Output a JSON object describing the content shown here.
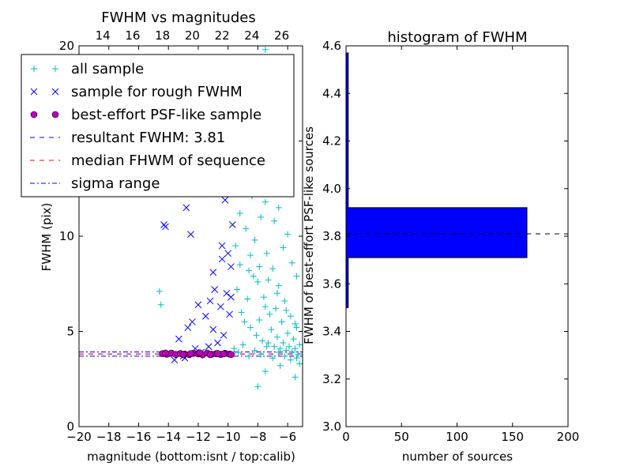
{
  "chart_data": [
    {
      "type": "scatter",
      "title": "FWHM vs magnitudes",
      "xlabel": "magnitude (bottom:isnt / top:calib)",
      "ylabel": "FWHM (pix)",
      "xlim": [
        -20,
        -5
      ],
      "ylim": [
        0,
        20
      ],
      "x_ticks": [
        -20,
        -18,
        -16,
        -14,
        -12,
        -10,
        -8,
        -6
      ],
      "x_tick_labels": [
        "−20",
        "−18",
        "−16",
        "−14",
        "−12",
        "−10",
        "−8",
        "−6"
      ],
      "y_ticks": [
        0,
        5,
        10,
        15,
        20
      ],
      "y_tick_labels": [
        "0",
        "5",
        "10",
        "15",
        "20"
      ],
      "top_axis": {
        "offset": 32.4,
        "ticks": [
          14,
          16,
          18,
          20,
          22,
          24,
          26
        ],
        "tick_labels": [
          "14",
          "16",
          "18",
          "20",
          "22",
          "24",
          "26"
        ]
      },
      "grid": false,
      "legend_position": "top-left",
      "legend": [
        {
          "label": "all sample",
          "marker": "plus",
          "color": "#00bfbf"
        },
        {
          "label": "sample for rough FWHM",
          "marker": "x",
          "color": "#0000ff"
        },
        {
          "label": "best-effort PSF-like sample",
          "marker": "circle",
          "color": "#bf00bf"
        },
        {
          "label": "resultant FWHM: 3.81",
          "marker": "dashed-line",
          "color": "#0000ff"
        },
        {
          "label": "median FHWM of sequence",
          "marker": "dashed-line",
          "color": "#ff0000"
        },
        {
          "label": "sigma range",
          "marker": "dashdot-line",
          "color": "#0000ff"
        }
      ],
      "series": [
        {
          "marker": "plus",
          "color": "#00bfbf",
          "points": [
            [
              -14.6,
              7.1
            ],
            [
              -14.5,
              6.4
            ],
            [
              -9.5,
              9.5
            ],
            [
              -9.2,
              11.2
            ],
            [
              -9.0,
              13.5
            ],
            [
              -8.8,
              10.4
            ],
            [
              -8.6,
              8.2
            ],
            [
              -8.4,
              12.1
            ],
            [
              -8.2,
              9.8
            ],
            [
              -8.0,
              7.6
            ],
            [
              -7.8,
              11.0
            ],
            [
              -7.6,
              6.8
            ],
            [
              -7.4,
              9.1
            ],
            [
              -7.2,
              5.9
            ],
            [
              -7.0,
              8.3
            ],
            [
              -6.8,
              6.2
            ],
            [
              -6.6,
              7.4
            ],
            [
              -6.4,
              5.5
            ],
            [
              -6.2,
              6.6
            ],
            [
              -6.0,
              4.9
            ],
            [
              -5.8,
              5.8
            ],
            [
              -5.6,
              4.6
            ],
            [
              -5.4,
              5.2
            ],
            [
              -5.2,
              4.3
            ],
            [
              -9.4,
              7.2
            ],
            [
              -9.1,
              6.0
            ],
            [
              -8.9,
              5.5
            ],
            [
              -8.7,
              6.7
            ],
            [
              -8.5,
              5.2
            ],
            [
              -8.3,
              7.9
            ],
            [
              -8.1,
              4.8
            ],
            [
              -7.9,
              5.6
            ],
            [
              -7.7,
              4.5
            ],
            [
              -7.5,
              6.3
            ],
            [
              -7.3,
              4.4
            ],
            [
              -7.1,
              5.1
            ],
            [
              -6.9,
              4.2
            ],
            [
              -6.7,
              4.7
            ],
            [
              -6.5,
              4.1
            ],
            [
              -6.3,
              4.4
            ],
            [
              -6.1,
              4.0
            ],
            [
              -5.9,
              4.2
            ],
            [
              -5.7,
              3.9
            ],
            [
              -5.5,
              4.1
            ],
            [
              -5.3,
              3.8
            ],
            [
              -8.0,
              2.1
            ],
            [
              -7.5,
              2.9
            ],
            [
              -6.5,
              3.2
            ],
            [
              -5.5,
              2.6
            ],
            [
              -5.2,
              3.3
            ],
            [
              -9.3,
              14.8
            ],
            [
              -9.0,
              16.2
            ],
            [
              -8.7,
              15.1
            ],
            [
              -8.4,
              13.7
            ],
            [
              -8.1,
              12.6
            ],
            [
              -7.8,
              14.2
            ],
            [
              -7.5,
              11.8
            ],
            [
              -7.2,
              12.9
            ],
            [
              -6.9,
              10.8
            ],
            [
              -6.6,
              11.5
            ],
            [
              -6.3,
              9.4
            ],
            [
              -6.0,
              10.1
            ],
            [
              -5.7,
              8.6
            ],
            [
              -5.4,
              7.9
            ],
            [
              -9.6,
              4.1
            ],
            [
              -9.3,
              3.9
            ],
            [
              -9.0,
              4.3
            ],
            [
              -8.6,
              3.7
            ],
            [
              -8.2,
              4.0
            ],
            [
              -7.8,
              3.8
            ],
            [
              -7.4,
              4.2
            ],
            [
              -7.0,
              3.6
            ],
            [
              -6.6,
              3.9
            ],
            [
              -6.2,
              3.7
            ],
            [
              -5.8,
              3.5
            ],
            [
              -5.4,
              3.6
            ],
            [
              -9.7,
              18.6
            ],
            [
              -9.0,
              19.2
            ],
            [
              -7.5,
              19.8
            ],
            [
              -9.2,
              8.5
            ],
            [
              -8.5,
              9.0
            ],
            [
              -7.9,
              8.4
            ],
            [
              -7.3,
              7.7
            ],
            [
              -6.7,
              7.0
            ],
            [
              -6.1,
              6.1
            ],
            [
              -5.5,
              5.4
            ]
          ]
        },
        {
          "marker": "x",
          "color": "#0000ff",
          "points": [
            [
              -14.3,
              10.6
            ],
            [
              -14.2,
              10.5
            ],
            [
              -12.8,
              11.5
            ],
            [
              -12.5,
              10.1
            ],
            [
              -11.8,
              12.3
            ],
            [
              -11.6,
              12.8
            ],
            [
              -10.8,
              12.4
            ],
            [
              -10.6,
              13.2
            ],
            [
              -10.4,
              9.5
            ],
            [
              -10.2,
              11.9
            ],
            [
              -10.0,
              9.1
            ],
            [
              -9.8,
              8.4
            ],
            [
              -9.7,
              10.6
            ],
            [
              -10.9,
              7.2
            ],
            [
              -11.2,
              6.6
            ],
            [
              -11.5,
              5.8
            ],
            [
              -12.0,
              6.4
            ],
            [
              -12.4,
              5.5
            ],
            [
              -12.7,
              5.2
            ],
            [
              -13.3,
              4.6
            ],
            [
              -13.0,
              3.7
            ],
            [
              -11.8,
              3.9
            ],
            [
              -11.0,
              5.1
            ],
            [
              -10.5,
              6.3
            ],
            [
              -10.1,
              7.0
            ],
            [
              -9.9,
              5.9
            ],
            [
              -9.8,
              6.8
            ],
            [
              -10.3,
              4.8
            ],
            [
              -10.7,
              4.4
            ],
            [
              -11.3,
              4.2
            ],
            [
              -12.2,
              4.1
            ],
            [
              -13.6,
              3.5
            ],
            [
              -12.9,
              3.6
            ],
            [
              -10.0,
              15.2
            ],
            [
              -9.9,
              14.8
            ],
            [
              -10.6,
              16.9
            ],
            [
              -10.2,
              15.8
            ],
            [
              -9.7,
              13.9
            ],
            [
              -11.0,
              8.1
            ],
            [
              -10.4,
              8.8
            ]
          ]
        },
        {
          "marker": "circle",
          "color": "#bf00bf",
          "points": [
            [
              -14.4,
              3.83
            ],
            [
              -14.1,
              3.8
            ],
            [
              -13.8,
              3.86
            ],
            [
              -13.5,
              3.79
            ],
            [
              -13.2,
              3.84
            ],
            [
              -12.9,
              3.81
            ],
            [
              -12.6,
              3.78
            ],
            [
              -12.3,
              3.85
            ],
            [
              -12.0,
              3.82
            ],
            [
              -11.7,
              3.77
            ],
            [
              -11.4,
              3.86
            ],
            [
              -11.1,
              3.8
            ],
            [
              -10.8,
              3.83
            ],
            [
              -10.5,
              3.79
            ],
            [
              -10.2,
              3.85
            ],
            [
              -9.9,
              3.81
            ],
            [
              -13.0,
              3.78
            ],
            [
              -11.9,
              3.87
            ],
            [
              -10.7,
              3.84
            ],
            [
              -9.8,
              3.79
            ],
            [
              -14.2,
              3.86
            ],
            [
              -12.5,
              3.83
            ],
            [
              -11.2,
              3.78
            ],
            [
              -10.3,
              3.82
            ]
          ]
        }
      ],
      "hlines": [
        {
          "y": 3.81,
          "color": "#0000ff",
          "style": "dashed",
          "label": "resultant FWHM: 3.81"
        },
        {
          "y": 3.81,
          "color": "#ff0000",
          "style": "dashed",
          "label": "median FHWM of sequence"
        },
        {
          "y": 3.7,
          "color": "#0000ff",
          "style": "dashdot",
          "label": "sigma range"
        },
        {
          "y": 3.92,
          "color": "#0000ff",
          "style": "dashdot",
          "label": "sigma range"
        }
      ]
    },
    {
      "type": "bar",
      "orientation": "horizontal",
      "title": "histogram of FWHM",
      "xlabel": "number of sources",
      "ylabel": "FWHM of best-effort PSF-like sources",
      "xlim": [
        0,
        200
      ],
      "ylim": [
        3.0,
        4.6
      ],
      "x_ticks": [
        0,
        50,
        100,
        150,
        200
      ],
      "x_tick_labels": [
        "0",
        "50",
        "100",
        "150",
        "200"
      ],
      "y_ticks": [
        3.0,
        3.2,
        3.4,
        3.6,
        3.8,
        4.0,
        4.2,
        4.4,
        4.6
      ],
      "y_tick_labels": [
        "3.0",
        "3.2",
        "3.4",
        "3.6",
        "3.8",
        "4.0",
        "4.2",
        "4.4",
        "4.6"
      ],
      "grid": false,
      "bars": [
        {
          "y0": 3.5,
          "y1": 3.71,
          "value": 2
        },
        {
          "y0": 3.71,
          "y1": 3.92,
          "value": 163
        },
        {
          "y0": 3.92,
          "y1": 4.57,
          "value": 2
        }
      ],
      "bar_color": "#0000ff",
      "hline": {
        "y": 3.81,
        "color": "#000000",
        "style": "dashed"
      }
    }
  ]
}
